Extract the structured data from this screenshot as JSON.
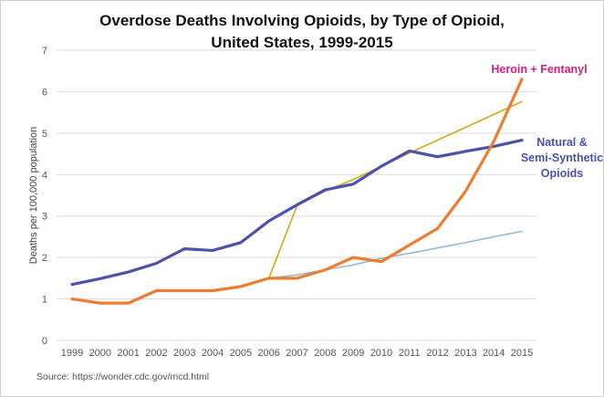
{
  "chart_data": {
    "type": "line",
    "title_lines": [
      "Overdose Deaths Involving Opioids, by Type of Opioid,",
      "United States, 1999-2015"
    ],
    "ylabel": "Deaths per 100,000 population",
    "xlabel": "",
    "source": "Source: https://wonder.cdc.gov/mcd.html",
    "ylim": [
      0,
      7
    ],
    "yticks": [
      0,
      1,
      2,
      3,
      4,
      5,
      6,
      7
    ],
    "grid": true,
    "x": [
      1999,
      2000,
      2001,
      2002,
      2003,
      2004,
      2005,
      2006,
      2007,
      2008,
      2009,
      2010,
      2011,
      2012,
      2013,
      2014,
      2015
    ],
    "series": [
      {
        "key": "trend_natural",
        "color": "#cfaa10",
        "values": [
          null,
          null,
          null,
          null,
          null,
          null,
          null,
          1.5,
          3.25,
          3.6,
          3.88,
          4.2,
          4.52,
          4.83,
          5.14,
          5.45,
          5.76
        ]
      },
      {
        "key": "trend_heroin",
        "color": "#9bb8d8",
        "values": [
          null,
          null,
          null,
          null,
          null,
          null,
          null,
          1.5,
          1.58,
          1.7,
          1.82,
          1.98,
          2.1,
          2.23,
          2.36,
          2.5,
          2.63
        ]
      },
      {
        "key": "natural_semisynthetic",
        "name_lines": [
          "Natural &",
          "Semi-Synthetic",
          "Opioids"
        ],
        "color": "#4a52ad",
        "values": [
          1.35,
          1.49,
          1.65,
          1.86,
          2.21,
          2.17,
          2.36,
          2.88,
          3.27,
          3.63,
          3.77,
          4.2,
          4.57,
          4.43,
          4.56,
          4.68,
          4.83
        ]
      },
      {
        "key": "heroin_fentanyl",
        "name_lines": [
          "Heroin + Fentanyl"
        ],
        "color": "#ed7d31",
        "values": [
          1.0,
          0.9,
          0.9,
          1.2,
          1.2,
          1.2,
          1.3,
          1.5,
          1.5,
          1.7,
          2.0,
          1.9,
          2.3,
          2.7,
          3.6,
          4.8,
          6.3
        ]
      }
    ],
    "annotations": [
      {
        "series": "heroin_fentanyl",
        "color": "#e0197a"
      },
      {
        "series": "natural_semisynthetic",
        "color": "#4a52ad"
      }
    ]
  }
}
